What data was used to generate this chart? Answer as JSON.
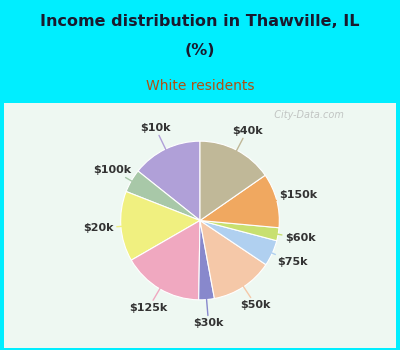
{
  "title_line1": "Income distribution in Thawville, IL",
  "title_line2": "(%)",
  "subtitle": "White residents",
  "title_color": "#1a1a2e",
  "subtitle_color": "#b05010",
  "background_cyan": "#00eeff",
  "background_chart_inner": "#f0faf5",
  "labels": [
    "$10k",
    "$100k",
    "$20k",
    "$125k",
    "$30k",
    "$50k",
    "$75k",
    "$60k",
    "$150k",
    "$40k"
  ],
  "values": [
    13.5,
    4.5,
    13.5,
    15.5,
    3.0,
    12.0,
    5.0,
    2.5,
    10.5,
    14.5
  ],
  "colors": [
    "#b0a0d8",
    "#a8c8a8",
    "#f0f080",
    "#f0a8c0",
    "#8888cc",
    "#f5c8a8",
    "#b0d0f0",
    "#c8e070",
    "#f0a860",
    "#c0b898"
  ],
  "startangle": 90,
  "label_fontsize": 8,
  "label_color": "#333333",
  "watermark": "  City-Data.com"
}
